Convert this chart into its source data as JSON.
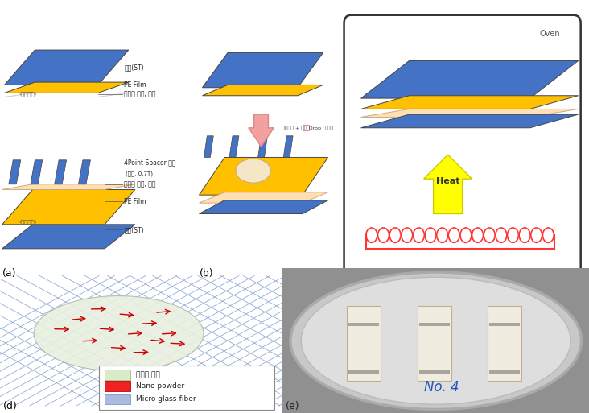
{
  "fig_width": 7.32,
  "fig_height": 5.13,
  "bg_color": "#ffffff",
  "blue_color": "#4472c4",
  "gold_color": "#ffc000",
  "light_peach": "#ffe0b0",
  "yellow_color": "#ffff00",
  "coil_color": "#ff3333",
  "arrow_pink": "#ff9999",
  "legend_epoxy": "에폭시 수지",
  "legend_nano": "Nano powder",
  "legend_fiber": "Micro glass-fiber",
  "panel_c_label": "Oven",
  "panel_c_heat": "Heat"
}
